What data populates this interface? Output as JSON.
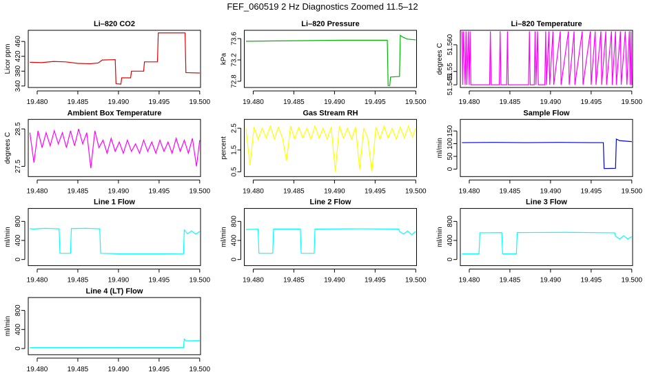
{
  "title": "FEF_060519  2 Hz Diagnostics Zoomed 11.5–12",
  "chart_data": [
    {
      "type": "line",
      "title": "Li–820 CO2",
      "ylabel": "Licor ppm",
      "color": "#e00000",
      "x": [
        19.4791,
        19.4805,
        19.482,
        19.4835,
        19.485,
        19.4865,
        19.4875,
        19.488,
        19.4896,
        19.4897,
        19.4903,
        19.4904,
        19.4915,
        19.4916,
        19.4931,
        19.4932,
        19.4948,
        19.4949,
        19.4982,
        19.4983,
        19.5
      ],
      "values": [
        404,
        403,
        406,
        405,
        401,
        400,
        402,
        410,
        411,
        346,
        345,
        362,
        362,
        380,
        380,
        405,
        405,
        483,
        483,
        376,
        375
      ],
      "xlim": [
        19.4789,
        19.5001
      ],
      "ylim": [
        336,
        490
      ],
      "xticks": [
        {
          "value": 19.48,
          "label": "19.480"
        },
        19.485,
        {
          "value": 19.49,
          "label": "19.490"
        },
        19.495,
        {
          "value": 19.5,
          "label": "19.500"
        }
      ],
      "yticks": [
        340,
        380,
        420,
        460
      ]
    },
    {
      "type": "line",
      "title": "Li–820 Pressure",
      "ylabel": "kPa",
      "color": "#00b400",
      "x": [
        19.4791,
        19.482,
        19.485,
        19.488,
        19.491,
        19.494,
        19.4965,
        19.4966,
        19.4968,
        19.4969,
        19.498,
        19.4981,
        19.4985,
        19.499,
        19.5
      ],
      "values": [
        73.55,
        73.555,
        73.56,
        73.565,
        73.57,
        73.57,
        73.57,
        72.72,
        72.72,
        72.88,
        72.89,
        73.66,
        73.62,
        73.59,
        73.575
      ],
      "xlim": [
        19.4789,
        19.5001
      ],
      "ylim": [
        72.684,
        73.755
      ],
      "xticks": [
        {
          "value": 19.48,
          "label": "19.480"
        },
        19.485,
        {
          "value": 19.49,
          "label": "19.490"
        },
        19.495,
        {
          "value": 19.5,
          "label": "19.500"
        }
      ],
      "yticks": [
        72.8,
        73.2,
        73.6
      ]
    },
    {
      "type": "line",
      "title": "Li–820 Temperature",
      "ylabel": "degrees C",
      "color": "#ff00ff",
      "x": [
        19.4791,
        19.4792,
        19.4793,
        19.4795,
        19.4796,
        19.4797,
        19.4799,
        19.48,
        19.4801,
        19.4802,
        19.4825,
        19.4826,
        19.4827,
        19.4837,
        19.4838,
        19.4839,
        19.4846,
        19.4847,
        19.4848,
        19.4873,
        19.4874,
        19.4875,
        19.488,
        19.4881,
        19.4882,
        19.4884,
        19.4885,
        19.4893,
        19.4894,
        19.4895,
        19.4898,
        19.4899,
        19.4903,
        19.4904,
        19.4912,
        19.4913,
        19.4922,
        19.4923,
        19.4929,
        19.493,
        19.4939,
        19.494,
        19.4949,
        19.495,
        19.4955,
        19.4956,
        19.4962,
        19.4963,
        19.4968,
        19.4969,
        19.4975,
        19.4976,
        19.498,
        19.4981,
        19.4986,
        19.4987,
        19.4992,
        19.4994,
        19.4997,
        19.4998,
        19.4999,
        19.5
      ],
      "values": [
        51.565,
        51.545,
        51.565,
        51.545,
        51.565,
        51.545,
        51.565,
        51.545,
        51.565,
        51.545,
        51.545,
        51.565,
        51.545,
        51.545,
        51.565,
        51.545,
        51.545,
        51.565,
        51.545,
        51.545,
        51.565,
        51.545,
        51.545,
        51.565,
        51.545,
        51.565,
        51.545,
        51.545,
        51.565,
        51.545,
        51.565,
        51.545,
        51.565,
        51.545,
        51.565,
        51.545,
        51.565,
        51.545,
        51.565,
        51.545,
        51.565,
        51.545,
        51.565,
        51.545,
        51.565,
        51.545,
        51.565,
        51.545,
        51.565,
        51.545,
        51.565,
        51.545,
        51.565,
        51.545,
        51.565,
        51.545,
        51.565,
        51.545,
        51.565,
        51.545,
        51.565,
        51.545
      ],
      "xlim": [
        19.4789,
        19.5001
      ],
      "ylim": [
        51.544,
        51.5654
      ],
      "xticks": [
        {
          "value": 19.48,
          "label": "19.480"
        },
        19.485,
        {
          "value": 19.49,
          "label": "19.490"
        },
        19.495,
        {
          "value": 19.5,
          "label": "19.500"
        }
      ],
      "yticks": [
        51.545,
        51.55,
        {
          "value": 51.56,
          "label": "51.560"
        }
      ]
    },
    {
      "type": "line",
      "title": "Ambient Box Temperature",
      "ylabel": "degrees C",
      "color": "#ff00ff",
      "x": [
        19.4791,
        19.4796,
        19.4801,
        19.4806,
        19.4811,
        19.4816,
        19.4821,
        19.4826,
        19.4831,
        19.4836,
        19.4841,
        19.4846,
        19.4851,
        19.4856,
        19.4861,
        19.4866,
        19.4871,
        19.4876,
        19.4881,
        19.4886,
        19.4891,
        19.4896,
        19.4901,
        19.4906,
        19.4911,
        19.4916,
        19.4921,
        19.4926,
        19.4931,
        19.4936,
        19.4941,
        19.4946,
        19.4951,
        19.4956,
        19.4961,
        19.4966,
        19.4971,
        19.4976,
        19.4981,
        19.4986,
        19.4991,
        19.4996,
        19.5
      ],
      "values": [
        28.4,
        27.6,
        28.45,
        28.0,
        28.4,
        28.05,
        28.45,
        28.1,
        28.4,
        28.0,
        28.45,
        28.05,
        28.5,
        28.1,
        28.4,
        27.45,
        28.45,
        28.0,
        28.2,
        27.85,
        28.25,
        27.9,
        28.15,
        27.85,
        28.2,
        27.9,
        28.1,
        27.85,
        28.2,
        27.9,
        28.15,
        27.85,
        28.2,
        27.9,
        28.15,
        27.85,
        28.25,
        27.9,
        28.2,
        27.85,
        28.25,
        27.5,
        28.2
      ],
      "xlim": [
        19.4789,
        19.5001
      ],
      "ylim": [
        27.227,
        28.755
      ],
      "xticks": [
        {
          "value": 19.48,
          "label": "19.480"
        },
        19.485,
        {
          "value": 19.49,
          "label": "19.490"
        },
        19.495,
        {
          "value": 19.5,
          "label": "19.500"
        }
      ],
      "yticks": [
        27.5,
        28.5
      ]
    },
    {
      "type": "line",
      "title": "Gas Stream RH",
      "ylabel": "percent",
      "color": "#ffff00",
      "x": [
        19.4791,
        19.4796,
        19.4801,
        19.4806,
        19.4811,
        19.4816,
        19.4821,
        19.4826,
        19.4831,
        19.4836,
        19.4841,
        19.4846,
        19.4851,
        19.4856,
        19.4861,
        19.4866,
        19.4871,
        19.4876,
        19.4881,
        19.4886,
        19.4891,
        19.4896,
        19.4901,
        19.4906,
        19.4911,
        19.4916,
        19.4921,
        19.4926,
        19.4931,
        19.4936,
        19.4941,
        19.4946,
        19.4951,
        19.4956,
        19.4961,
        19.4966,
        19.4971,
        19.4976,
        19.4981,
        19.4986,
        19.4991,
        19.4996,
        19.5
      ],
      "values": [
        2.5,
        0.8,
        2.55,
        2.0,
        2.5,
        2.05,
        2.6,
        2.0,
        2.55,
        2.05,
        1.0,
        2.6,
        2.0,
        2.55,
        2.05,
        2.5,
        2.0,
        2.6,
        2.05,
        2.5,
        2.0,
        2.55,
        0.5,
        2.6,
        2.05,
        2.5,
        2.0,
        2.55,
        0.6,
        2.5,
        2.05,
        0.5,
        2.55,
        2.0,
        2.6,
        2.05,
        2.5,
        2.0,
        2.55,
        2.05,
        2.6,
        2.1,
        2.5
      ],
      "xlim": [
        19.4789,
        19.5001
      ],
      "ylim": [
        0.281,
        2.906
      ],
      "xticks": [
        {
          "value": 19.48,
          "label": "19.480"
        },
        19.485,
        {
          "value": 19.49,
          "label": "19.490"
        },
        19.495,
        {
          "value": 19.5,
          "label": "19.500"
        }
      ],
      "yticks": [
        0.5,
        1.5,
        2.5
      ]
    },
    {
      "type": "line",
      "title": "Sample Flow",
      "ylabel": "ml/min",
      "color": "#0000d8",
      "x": [
        19.4791,
        19.483,
        19.487,
        19.491,
        19.495,
        19.4965,
        19.4966,
        19.498,
        19.4981,
        19.4985,
        19.5
      ],
      "values": [
        104,
        105,
        104,
        105,
        104,
        104,
        2,
        3,
        118,
        112,
        108
      ],
      "xlim": [
        19.4789,
        19.5001
      ],
      "ylim": [
        -29.5,
        195.6
      ],
      "xticks": [
        {
          "value": 19.48,
          "label": "19.480"
        },
        19.485,
        {
          "value": 19.49,
          "label": "19.490"
        },
        19.495,
        {
          "value": 19.5,
          "label": "19.500"
        }
      ],
      "yticks": [
        0,
        50,
        100,
        150
      ]
    },
    {
      "type": "line",
      "title": "Line 1 Flow",
      "ylabel": "ml/min",
      "color": "#00ffff",
      "x": [
        19.4791,
        19.4795,
        19.481,
        19.4827,
        19.4828,
        19.4841,
        19.4842,
        19.486,
        19.4877,
        19.4878,
        19.489,
        19.49,
        19.495,
        19.498,
        19.4981,
        19.4985,
        19.499,
        19.4995,
        19.5
      ],
      "values": [
        650,
        640,
        655,
        645,
        130,
        130,
        650,
        655,
        645,
        130,
        125,
        120,
        120,
        122,
        620,
        540,
        600,
        530,
        590
      ],
      "xlim": [
        19.4789,
        19.5001
      ],
      "ylim": [
        -129,
        1071
      ],
      "xticks": [
        {
          "value": 19.48,
          "label": "19.480"
        },
        19.485,
        {
          "value": 19.49,
          "label": "19.490"
        },
        19.495,
        {
          "value": 19.5,
          "label": "19.500"
        }
      ],
      "yticks": [
        0,
        400,
        800
      ]
    },
    {
      "type": "line",
      "title": "Line 2 Flow",
      "ylabel": "ml/min",
      "color": "#00ffff",
      "x": [
        19.4791,
        19.4806,
        19.4807,
        19.4824,
        19.4825,
        19.4858,
        19.4859,
        19.4875,
        19.4876,
        19.493,
        19.4979,
        19.498,
        19.4985,
        19.499,
        19.4995,
        19.5
      ],
      "values": [
        630,
        635,
        130,
        130,
        640,
        640,
        130,
        130,
        640,
        645,
        640,
        590,
        530,
        600,
        520,
        590
      ],
      "xlim": [
        19.4789,
        19.5001
      ],
      "ylim": [
        -129,
        1071
      ],
      "xticks": [
        {
          "value": 19.48,
          "label": "19.480"
        },
        19.485,
        {
          "value": 19.49,
          "label": "19.490"
        },
        19.495,
        {
          "value": 19.5,
          "label": "19.500"
        }
      ],
      "yticks": [
        0,
        400,
        800
      ]
    },
    {
      "type": "line",
      "title": "Line 3 Flow",
      "ylabel": "ml/min",
      "color": "#00ffff",
      "x": [
        19.4791,
        19.4812,
        19.4813,
        19.484,
        19.4841,
        19.4858,
        19.4859,
        19.492,
        19.4979,
        19.498,
        19.4985,
        19.499,
        19.4995,
        19.5
      ],
      "values": [
        120,
        120,
        560,
        565,
        120,
        120,
        565,
        570,
        560,
        490,
        430,
        500,
        430,
        480
      ],
      "xlim": [
        19.4789,
        19.5001
      ],
      "ylim": [
        -129,
        1071
      ],
      "xticks": [
        {
          "value": 19.48,
          "label": "19.480"
        },
        19.485,
        {
          "value": 19.49,
          "label": "19.490"
        },
        19.495,
        {
          "value": 19.5,
          "label": "19.500"
        }
      ],
      "yticks": [
        0,
        400,
        800
      ]
    },
    {
      "type": "line",
      "title": "Line 4 (LT) Flow",
      "ylabel": "ml/min",
      "color": "#00ffff",
      "x": [
        19.4791,
        19.485,
        19.498,
        19.4981,
        19.4983,
        19.5
      ],
      "values": [
        20,
        20,
        22,
        200,
        160,
        165
      ],
      "xlim": [
        19.4789,
        19.5001
      ],
      "ylim": [
        -129,
        1071
      ],
      "xticks": [
        {
          "value": 19.48,
          "label": "19.480"
        },
        19.485,
        {
          "value": 19.49,
          "label": "19.490"
        },
        19.495,
        {
          "value": 19.5,
          "label": "19.500"
        }
      ],
      "yticks": [
        0,
        400,
        800
      ]
    }
  ]
}
